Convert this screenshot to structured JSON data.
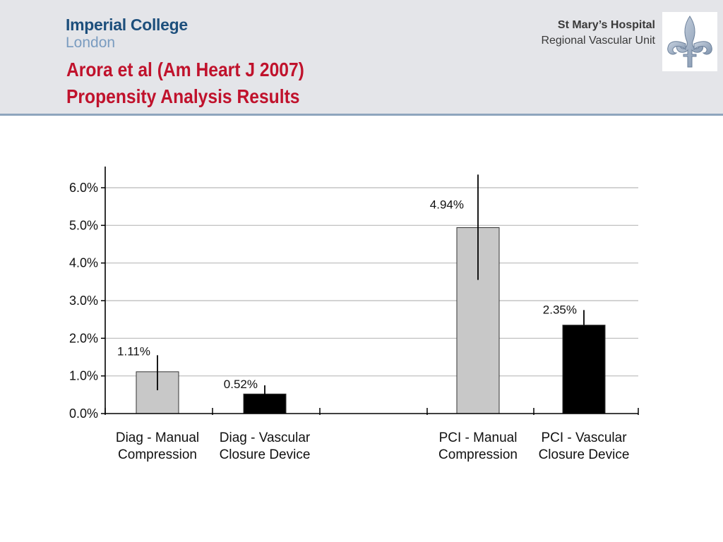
{
  "header": {
    "logo_line1": "Imperial College",
    "logo_line2": "London",
    "title_line1": "Arora et al (Am Heart J 2007)",
    "title_line2": "Propensity Analysis Results",
    "hospital_name": "St Mary’s Hospital",
    "hospital_unit": "Regional Vascular Unit",
    "emblem_icon": "fleur-de-lis-icon"
  },
  "colors": {
    "title": "#c0122c",
    "manual_bar": "#c8c8c8",
    "device_bar": "#000000",
    "header_bg": "#e4e5e9",
    "rule": "#8ea5bd"
  },
  "chart_data": {
    "type": "bar",
    "title": "",
    "xlabel": "",
    "ylabel": "",
    "ylim": [
      0,
      6.0
    ],
    "yticks": [
      "0.0%",
      "1.0%",
      "2.0%",
      "3.0%",
      "4.0%",
      "5.0%",
      "6.0%"
    ],
    "grid": true,
    "bars": [
      {
        "label_line1": "Diag - Manual",
        "label_line2": "Compression",
        "value": 1.11,
        "value_label": "1.11%",
        "err_low": 0.62,
        "err_high": 1.55,
        "color": "#c8c8c8"
      },
      {
        "label_line1": "Diag - Vascular",
        "label_line2": "Closure Device",
        "value": 0.52,
        "value_label": "0.52%",
        "err_low": 0.45,
        "err_high": 0.75,
        "color": "#000000"
      },
      {
        "label_line1": "PCI - Manual",
        "label_line2": "Compression",
        "value": 4.94,
        "value_label": "4.94%",
        "err_low": 3.55,
        "err_high": 6.35,
        "color": "#c8c8c8"
      },
      {
        "label_line1": "PCI - Vascular",
        "label_line2": "Closure Device",
        "value": 2.35,
        "value_label": "2.35%",
        "err_low": 2.35,
        "err_high": 2.75,
        "color": "#000000"
      }
    ]
  }
}
